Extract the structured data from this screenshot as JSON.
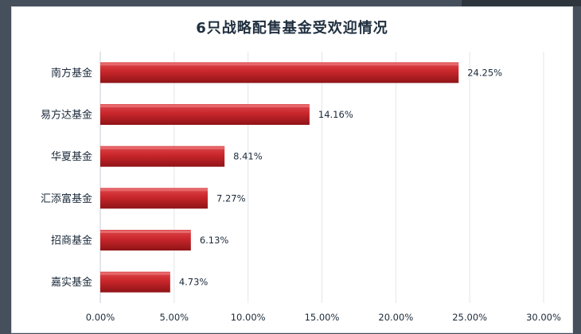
{
  "chart_data": {
    "type": "bar",
    "orientation": "horizontal",
    "title": "6只战略配售基金受欢迎情况",
    "categories": [
      "南方基金",
      "易方达基金",
      "华夏基金",
      "汇添富基金",
      "招商基金",
      "嘉实基金"
    ],
    "values": [
      24.25,
      14.16,
      8.41,
      7.27,
      6.13,
      4.73
    ],
    "value_labels": [
      "24.25%",
      "14.16%",
      "8.41%",
      "7.27%",
      "6.13%",
      "4.73%"
    ],
    "x_ticks": [
      "0.00%",
      "5.00%",
      "10.00%",
      "15.00%",
      "20.00%",
      "25.00%",
      "30.00%"
    ],
    "xlim": [
      0,
      30
    ],
    "grid": true,
    "legend": "none",
    "bar_color": "#c0262b"
  }
}
